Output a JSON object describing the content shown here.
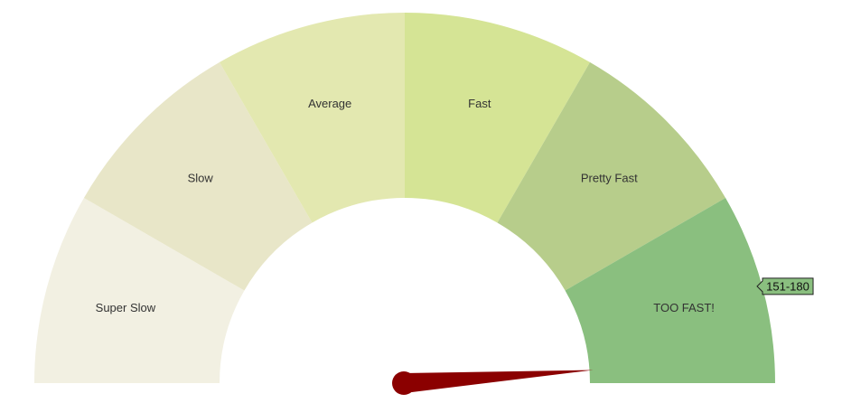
{
  "chart_data": {
    "type": "gauge",
    "value_fraction": 0.978,
    "segments": [
      {
        "label": "Super Slow",
        "color": "#f2f0e2"
      },
      {
        "label": "Slow",
        "color": "#e8e6c8"
      },
      {
        "label": "Average",
        "color": "#e3e8b0"
      },
      {
        "label": "Fast",
        "color": "#d5e495"
      },
      {
        "label": "Pretty Fast",
        "color": "#b7cd8b"
      },
      {
        "label": "TOO FAST!",
        "color": "#8abf7f"
      }
    ],
    "hover_tooltip": {
      "segment": "TOO FAST!",
      "text": "151-180"
    },
    "needle_color": "#8b0000",
    "tooltip_color": "#8abf7f"
  }
}
